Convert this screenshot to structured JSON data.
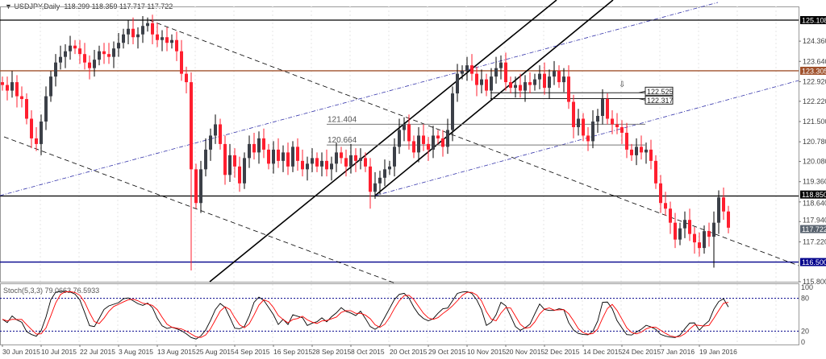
{
  "header": {
    "arrow": "▼",
    "symbol": "USDJPY,Daily",
    "ohlc": "118.299 118.359 117.717 117.722"
  },
  "stoch": {
    "label": "Stoch(5,3,3) 79.0663 76.5933",
    "levels": [
      80,
      20
    ],
    "axis": [
      "100",
      "80",
      "20",
      "0"
    ]
  },
  "colors": {
    "bull": "#000000",
    "bear": "#ff1f2f",
    "k_line": "#000000",
    "d_line": "#ff0000",
    "level": "#00008b",
    "resistance": "#a0522d"
  },
  "chart_data": {
    "type": "candlestick",
    "symbol": "USDJPY",
    "timeframe": "Daily",
    "closes": [
      122.8,
      122.6,
      122.9,
      122.4,
      122.3,
      121.6,
      120.9,
      120.7,
      121.5,
      122.4,
      123.1,
      123.6,
      123.8,
      124.0,
      124.2,
      124.1,
      123.9,
      123.6,
      123.4,
      123.7,
      124.0,
      123.9,
      123.8,
      124.1,
      124.3,
      124.6,
      124.8,
      124.5,
      124.6,
      124.9,
      125.0,
      124.6,
      124.4,
      124.5,
      124.3,
      124.4,
      124.0,
      123.2,
      122.9,
      119.8,
      118.6,
      119.8,
      120.5,
      121.0,
      121.4,
      120.7,
      119.6,
      120.3,
      119.9,
      119.3,
      120.2,
      120.7,
      120.4,
      120.9,
      120.5,
      120.0,
      120.5,
      120.1,
      120.4,
      119.9,
      120.6,
      120.1,
      119.8,
      120.0,
      120.2,
      119.9,
      120.1,
      119.8,
      120.0,
      120.4,
      120.2,
      119.9,
      120.3,
      120.1,
      120.2,
      119.9,
      119.0,
      119.3,
      119.5,
      119.8,
      119.9,
      120.6,
      121.2,
      121.4,
      120.8,
      120.4,
      121.0,
      120.7,
      120.5,
      121.0,
      120.9,
      120.6,
      121.2,
      122.5,
      123.2,
      123.3,
      123.5,
      123.2,
      122.8,
      123.0,
      122.6,
      123.1,
      123.4,
      123.6,
      122.9,
      122.7,
      122.8,
      122.6,
      122.9,
      122.8,
      123.0,
      123.2,
      122.7,
      123.1,
      123.3,
      122.9,
      123.1,
      122.2,
      121.3,
      121.6,
      121.0,
      120.8,
      121.5,
      121.7,
      122.3,
      121.6,
      121.4,
      121.3,
      121.1,
      120.5,
      120.3,
      120.6,
      120.4,
      120.5,
      120.1,
      119.3,
      118.6,
      118.4,
      117.9,
      117.3,
      117.7,
      118.0,
      117.5,
      117.2,
      117.0,
      117.6,
      117.4,
      117.9,
      118.8,
      118.3,
      117.722
    ],
    "first_open": 122.9,
    "notable_lows": {
      "39": 116.2,
      "76": 118.4,
      "147": 116.3
    },
    "y_range": [
      115.8,
      125.108
    ],
    "y_ticks": [
      "125.108",
      "124.360",
      "123.640",
      "123.305",
      "122.920",
      "122.220",
      "121.500",
      "120.780",
      "120.080",
      "119.360",
      "118.850",
      "118.640",
      "117.940",
      "117.722",
      "117.220",
      "116.500",
      "115.800"
    ],
    "x_ticks": [
      "30 Jun 2015",
      "10 Jul 2015",
      "22 Jul 2015",
      "3 Aug 2015",
      "13 Aug 2015",
      "25 Aug 2015",
      "4 Sep 2015",
      "16 Sep 2015",
      "28 Sep 2015",
      "8 Oct 2015",
      "20 Oct 2015",
      "29 Oct 2015",
      "10 Nov 2015",
      "20 Nov 2015",
      "2 Dec 2015",
      "14 Dec 2015",
      "24 Dec 2015",
      "7 Jan 2016",
      "19 Jan 2016"
    ],
    "horizontal_levels": [
      {
        "price": 125.108,
        "label": "125.108",
        "color": "#000000",
        "tag_bg": "#000000"
      },
      {
        "price": 123.305,
        "label": "123.305",
        "color": "#a0522d",
        "tag_bg": "#a0522d"
      },
      {
        "price": 118.85,
        "label": "118.850",
        "color": "#000000",
        "tag_bg": "#000000"
      },
      {
        "price": 116.5,
        "label": "116.500",
        "color": "#00008b",
        "tag_bg": "#00008b"
      },
      {
        "price": 117.722,
        "label": "117.722",
        "color": null,
        "tag_bg": "#5a6470"
      }
    ],
    "annotated_levels": [
      {
        "price": 121.404,
        "label": "121.404"
      },
      {
        "price": 120.664,
        "label": "120.664"
      },
      {
        "price": 122.525,
        "label": "122.525",
        "boxed": true
      },
      {
        "price": 122.317,
        "label": "122.317",
        "boxed": true
      }
    ],
    "grid": true
  }
}
